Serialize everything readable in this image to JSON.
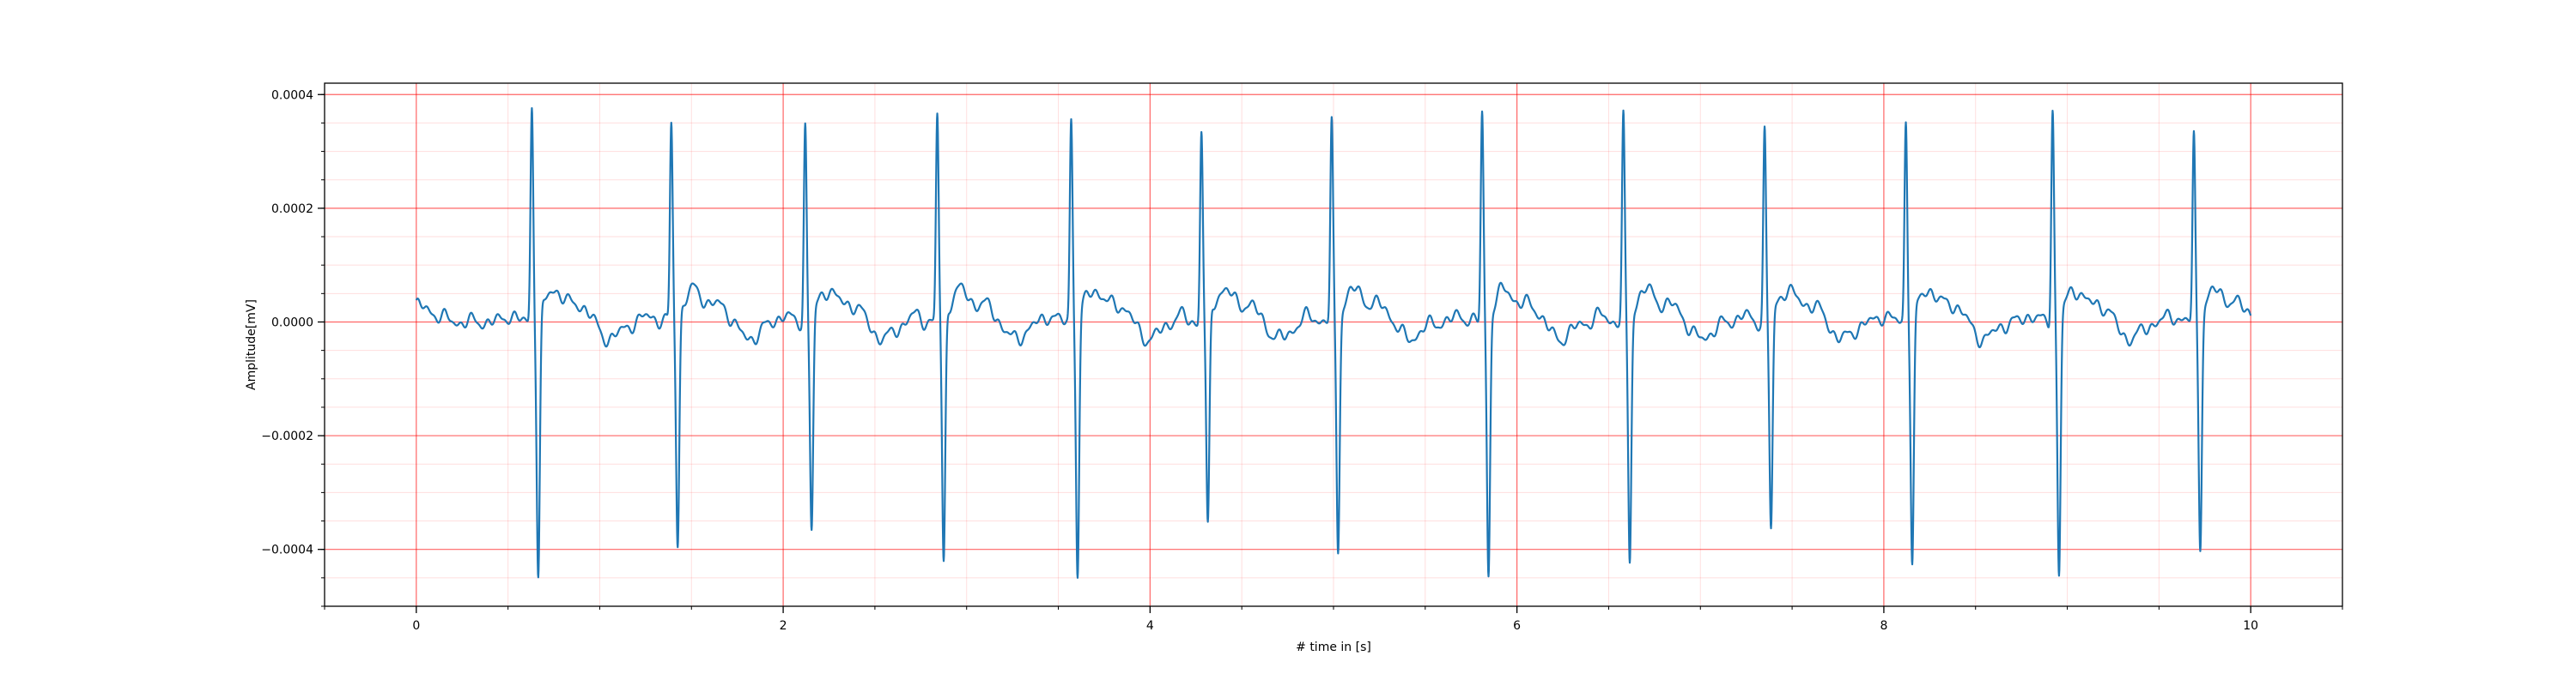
{
  "chart_data": {
    "type": "line",
    "title": "",
    "xlabel": "# time in [s]",
    "ylabel": "Amplitude[mV]",
    "xlim": [
      -0.5,
      10.5
    ],
    "ylim": [
      -0.0005,
      0.00042
    ],
    "xticks": [
      0,
      2,
      4,
      6,
      8,
      10
    ],
    "xtick_labels": [
      "0",
      "2",
      "4",
      "6",
      "8",
      "10"
    ],
    "yticks": [
      -0.0004,
      -0.0002,
      0.0,
      0.0002,
      0.0004
    ],
    "ytick_labels": [
      "−0.0004",
      "−0.0002",
      "0.0000",
      "0.0002",
      "0.0004"
    ],
    "grid": {
      "major": true,
      "minor": true,
      "color": "#ff0000"
    },
    "line_color": "#1f77b4",
    "series": [
      {
        "r_peaks": [
          {
            "t": 0.63,
            "r": 0.00038,
            "s": -0.00046
          },
          {
            "t": 1.39,
            "r": 0.000345,
            "s": -0.0004
          },
          {
            "t": 2.12,
            "r": 0.000345,
            "s": -0.00038
          },
          {
            "t": 2.84,
            "r": 0.00036,
            "s": -0.00044
          },
          {
            "t": 3.57,
            "r": 0.00036,
            "s": -0.00046
          },
          {
            "t": 4.28,
            "r": 0.000335,
            "s": -0.00038
          },
          {
            "t": 4.99,
            "r": 0.000345,
            "s": -0.00041
          },
          {
            "t": 5.81,
            "r": 0.000365,
            "s": -0.000455
          },
          {
            "t": 6.58,
            "r": 0.000355,
            "s": -0.000435
          },
          {
            "t": 7.35,
            "r": 0.000335,
            "s": -0.00038
          },
          {
            "t": 8.12,
            "r": 0.000355,
            "s": -0.00044
          },
          {
            "t": 8.92,
            "r": 0.000375,
            "s": -0.000455
          },
          {
            "t": 9.69,
            "r": 0.000325,
            "s": -0.0004
          }
        ],
        "baseline": 0.0,
        "t_start": 0.0,
        "t_end": 10.0
      }
    ]
  }
}
